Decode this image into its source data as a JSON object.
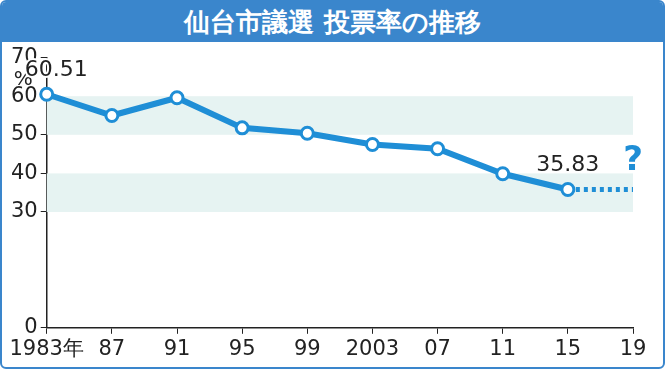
{
  "chart_data": {
    "type": "line",
    "title": "仙台市議選 投票率の推移",
    "ylabel": "%",
    "categories": [
      "1983年",
      "87",
      "91",
      "95",
      "99",
      "2003",
      "07",
      "11",
      "15",
      "19"
    ],
    "values": [
      60.51,
      55.0,
      59.6,
      51.8,
      50.4,
      47.5,
      46.4,
      39.9,
      35.83,
      null
    ],
    "value_labels": [
      "60.51",
      null,
      null,
      null,
      null,
      null,
      null,
      null,
      "35.83",
      null
    ],
    "data_labels": true,
    "annotations": [
      {
        "category": "19",
        "text": "?"
      }
    ],
    "color": "#1f8ed6",
    "marker": "circle",
    "line_style": "solid",
    "ylim": [
      0,
      70
    ],
    "yticks": [
      0,
      30,
      40,
      50,
      60,
      70
    ],
    "grid": true
  }
}
